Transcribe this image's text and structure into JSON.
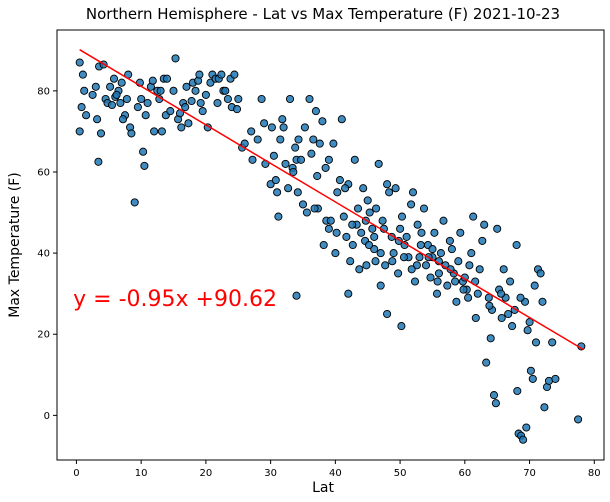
{
  "chart_data": {
    "type": "scatter",
    "title": "Northern Hemisphere - Lat vs Max Temperature (F) 2021-10-23",
    "xlabel": "Lat",
    "ylabel": "Max Temperature (F)",
    "xlim": [
      -3,
      81.5
    ],
    "ylim": [
      -11,
      95
    ],
    "xticks": [
      "0",
      "10",
      "20",
      "30",
      "40",
      "50",
      "60",
      "70",
      "80"
    ],
    "yticks": [
      "0",
      "20",
      "40",
      "60",
      "80"
    ],
    "grid": false,
    "point_color": "#1f77b4",
    "regression": {
      "slope": -0.95,
      "intercept": 90.62,
      "x_range": [
        0.5,
        78.3
      ],
      "color": "#ff0000",
      "equation_label": "y = -0.95x +90.62",
      "label_x": -0.5,
      "label_y": 27
    },
    "points": [
      [
        0.5,
        87
      ],
      [
        0.5,
        70
      ],
      [
        0.8,
        76
      ],
      [
        1.0,
        84
      ],
      [
        1.5,
        74
      ],
      [
        1.2,
        80
      ],
      [
        2.5,
        79
      ],
      [
        3.0,
        81
      ],
      [
        3.4,
        62.5
      ],
      [
        3.2,
        73
      ],
      [
        3.5,
        86
      ],
      [
        3.8,
        69.5
      ],
      [
        4.2,
        86.5
      ],
      [
        4.5,
        78
      ],
      [
        4.8,
        77
      ],
      [
        5.2,
        81
      ],
      [
        5.5,
        76.5
      ],
      [
        5.8,
        83
      ],
      [
        6.0,
        78.5
      ],
      [
        6.5,
        80
      ],
      [
        6.8,
        77
      ],
      [
        7.0,
        82
      ],
      [
        7.5,
        74
      ],
      [
        7.8,
        78
      ],
      [
        8.0,
        84
      ],
      [
        8.3,
        71
      ],
      [
        8.5,
        69.5
      ],
      [
        9.0,
        52.5
      ],
      [
        9.5,
        76
      ],
      [
        9.8,
        82
      ],
      [
        10.0,
        78
      ],
      [
        10.3,
        65
      ],
      [
        10.5,
        61.5
      ],
      [
        10.7,
        74
      ],
      [
        11.0,
        77
      ],
      [
        11.5,
        81
      ],
      [
        11.8,
        82.5
      ],
      [
        12.0,
        70
      ],
      [
        12.5,
        80
      ],
      [
        12.8,
        78
      ],
      [
        13.0,
        80
      ],
      [
        13.5,
        83
      ],
      [
        13.8,
        74
      ],
      [
        14.0,
        83
      ],
      [
        14.5,
        75
      ],
      [
        15.0,
        80
      ],
      [
        15.3,
        88
      ],
      [
        15.7,
        73
      ],
      [
        16.0,
        74.5
      ],
      [
        16.5,
        77
      ],
      [
        16.8,
        76
      ],
      [
        17.0,
        81
      ],
      [
        17.3,
        72
      ],
      [
        17.8,
        77.5
      ],
      [
        18.0,
        82
      ],
      [
        18.4,
        80
      ],
      [
        18.8,
        82.5
      ],
      [
        19.0,
        84
      ],
      [
        19.5,
        75
      ],
      [
        20.0,
        79
      ],
      [
        20.3,
        71
      ],
      [
        20.7,
        82
      ],
      [
        21.0,
        84
      ],
      [
        21.5,
        83
      ],
      [
        21.8,
        77
      ],
      [
        22.0,
        83
      ],
      [
        22.4,
        84
      ],
      [
        22.7,
        80
      ],
      [
        23.0,
        80
      ],
      [
        23.4,
        78
      ],
      [
        23.8,
        83
      ],
      [
        24.0,
        76
      ],
      [
        24.4,
        84
      ],
      [
        24.8,
        75.5
      ],
      [
        25.0,
        78
      ],
      [
        25.6,
        66
      ],
      [
        27.0,
        70
      ],
      [
        27.2,
        63
      ],
      [
        28.0,
        68
      ],
      [
        28.6,
        78
      ],
      [
        29.0,
        72
      ],
      [
        29.2,
        62
      ],
      [
        30.0,
        57
      ],
      [
        30.2,
        71
      ],
      [
        30.5,
        64
      ],
      [
        31.0,
        55
      ],
      [
        31.2,
        49
      ],
      [
        31.5,
        68
      ],
      [
        31.8,
        73
      ],
      [
        32.0,
        71
      ],
      [
        32.3,
        62
      ],
      [
        32.7,
        56
      ],
      [
        33.0,
        78
      ],
      [
        33.4,
        61
      ],
      [
        33.8,
        66
      ],
      [
        34.0,
        63
      ],
      [
        34.3,
        68
      ],
      [
        34.7,
        63
      ],
      [
        35.0,
        52
      ],
      [
        35.3,
        71
      ],
      [
        35.6,
        50
      ],
      [
        36.0,
        78
      ],
      [
        36.3,
        64.5
      ],
      [
        36.6,
        68
      ],
      [
        37.0,
        75
      ],
      [
        37.3,
        51
      ],
      [
        37.6,
        67
      ],
      [
        38.0,
        72.5
      ],
      [
        38.2,
        42
      ],
      [
        38.6,
        48
      ],
      [
        39.0,
        63
      ],
      [
        39.3,
        48
      ],
      [
        39.7,
        67
      ],
      [
        40.0,
        40
      ],
      [
        40.3,
        55
      ],
      [
        40.7,
        58
      ],
      [
        41.0,
        73
      ],
      [
        41.3,
        49
      ],
      [
        41.7,
        44
      ],
      [
        42.0,
        57
      ],
      [
        42.3,
        38
      ],
      [
        42.7,
        42
      ],
      [
        43.0,
        63
      ],
      [
        43.3,
        47
      ],
      [
        43.7,
        36
      ],
      [
        44.0,
        45
      ],
      [
        44.3,
        56
      ],
      [
        44.7,
        48
      ],
      [
        45.0,
        53
      ],
      [
        45.3,
        50
      ],
      [
        45.7,
        46
      ],
      [
        46.0,
        44
      ],
      [
        46.3,
        51
      ],
      [
        46.7,
        62
      ],
      [
        47.0,
        40
      ],
      [
        47.3,
        48
      ],
      [
        47.7,
        37
      ],
      [
        48.0,
        57
      ],
      [
        48.3,
        55
      ],
      [
        48.7,
        44
      ],
      [
        49.0,
        40
      ],
      [
        49.3,
        56
      ],
      [
        49.7,
        35
      ],
      [
        50.0,
        46
      ],
      [
        50.3,
        49
      ],
      [
        50.7,
        42
      ],
      [
        51.0,
        44
      ],
      [
        51.3,
        39
      ],
      [
        51.7,
        52
      ],
      [
        52.0,
        55
      ],
      [
        52.3,
        33
      ],
      [
        52.7,
        47
      ],
      [
        53.0,
        39
      ],
      [
        53.3,
        45
      ],
      [
        53.7,
        51
      ],
      [
        54.0,
        37
      ],
      [
        54.3,
        42
      ],
      [
        54.7,
        34
      ],
      [
        55.0,
        39
      ],
      [
        55.3,
        45
      ],
      [
        55.7,
        30
      ],
      [
        56.0,
        35
      ],
      [
        56.3,
        40
      ],
      [
        56.7,
        48
      ],
      [
        57.0,
        37
      ],
      [
        57.3,
        32
      ],
      [
        57.7,
        43
      ],
      [
        58.0,
        41
      ],
      [
        58.3,
        35
      ],
      [
        58.7,
        28
      ],
      [
        59.0,
        38
      ],
      [
        59.3,
        45
      ],
      [
        59.7,
        33
      ],
      [
        60.0,
        34
      ],
      [
        60.3,
        31
      ],
      [
        60.7,
        37
      ],
      [
        61.0,
        40
      ],
      [
        61.3,
        49
      ],
      [
        61.7,
        24
      ],
      [
        62.0,
        30
      ],
      [
        62.3,
        36
      ],
      [
        62.7,
        43
      ],
      [
        63.0,
        47
      ],
      [
        63.3,
        13
      ],
      [
        63.7,
        29
      ],
      [
        64.0,
        19
      ],
      [
        64.2,
        26
      ],
      [
        64.5,
        5
      ],
      [
        64.8,
        3
      ],
      [
        65.0,
        46
      ],
      [
        65.3,
        31
      ],
      [
        65.7,
        24
      ],
      [
        66.0,
        36
      ],
      [
        66.3,
        29
      ],
      [
        66.7,
        25
      ],
      [
        67.0,
        33
      ],
      [
        67.3,
        22
      ],
      [
        67.7,
        26
      ],
      [
        68.0,
        42
      ],
      [
        68.3,
        -4.5
      ],
      [
        68.7,
        -5
      ],
      [
        69.0,
        -6
      ],
      [
        69.3,
        28
      ],
      [
        69.7,
        21
      ],
      [
        70.0,
        23
      ],
      [
        70.2,
        11
      ],
      [
        70.5,
        9
      ],
      [
        70.8,
        32
      ],
      [
        71.0,
        18
      ],
      [
        71.3,
        36
      ],
      [
        71.7,
        35
      ],
      [
        72.0,
        28
      ],
      [
        72.3,
        2
      ],
      [
        72.7,
        7
      ],
      [
        73.0,
        8.5
      ],
      [
        73.5,
        18
      ],
      [
        74.0,
        9
      ],
      [
        77.5,
        -1
      ],
      [
        78.0,
        17
      ],
      [
        6.2,
        79
      ],
      [
        7.2,
        73
      ],
      [
        13.2,
        70
      ],
      [
        16.2,
        71
      ],
      [
        19.2,
        77
      ],
      [
        26.0,
        67
      ],
      [
        30.8,
        58
      ],
      [
        33.5,
        60
      ],
      [
        34.2,
        55
      ],
      [
        36.8,
        51
      ],
      [
        39.0,
        46
      ],
      [
        41.5,
        56
      ],
      [
        42.6,
        47
      ],
      [
        43.5,
        51
      ],
      [
        44.6,
        43
      ],
      [
        46.0,
        41
      ],
      [
        47.5,
        46
      ],
      [
        48.8,
        38
      ],
      [
        50.6,
        39
      ],
      [
        52.6,
        37
      ],
      [
        54.4,
        39
      ],
      [
        55.8,
        33
      ],
      [
        57.8,
        36
      ],
      [
        59.8,
        31
      ],
      [
        61.6,
        33
      ],
      [
        63.8,
        27
      ],
      [
        65.6,
        30
      ],
      [
        68.6,
        29
      ],
      [
        68.1,
        6
      ],
      [
        69.5,
        -3
      ],
      [
        42.0,
        30
      ],
      [
        34.0,
        29.5
      ],
      [
        55.0,
        41
      ],
      [
        50.2,
        22
      ],
      [
        48.0,
        25
      ],
      [
        60.5,
        29
      ],
      [
        45.2,
        42
      ],
      [
        38.5,
        61
      ],
      [
        40.2,
        45
      ],
      [
        37.2,
        59
      ],
      [
        44.8,
        37
      ],
      [
        47.0,
        32
      ],
      [
        51.8,
        36
      ],
      [
        46.2,
        38
      ],
      [
        49.8,
        43
      ],
      [
        53.2,
        42
      ],
      [
        56.0,
        38
      ],
      [
        58.5,
        33
      ]
    ]
  }
}
